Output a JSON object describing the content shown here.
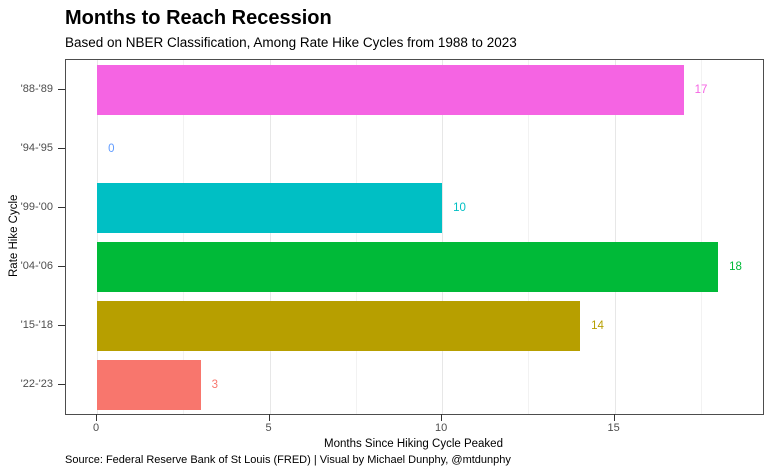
{
  "header": {
    "title": "Months to Reach Recession",
    "subtitle": "Based on NBER Classification, Among Rate Hike Cycles from 1988 to 2023"
  },
  "footer": {
    "caption": "Source: Federal Reserve Bank of St Louis (FRED) | Visual by Michael Dunphy, @mtdunphy"
  },
  "chart_data": {
    "type": "bar",
    "orientation": "horizontal",
    "title": "Months to Reach Recession",
    "subtitle": "Based on NBER Classification, Among Rate Hike Cycles from 1988 to 2023",
    "categories": [
      "'88-'89",
      "'94-'95",
      "'99-'00",
      "'04-'06",
      "'15-'18",
      "'22-'23"
    ],
    "values": [
      17,
      0,
      10,
      18,
      14,
      3
    ],
    "bar_colors": [
      "#F564E3",
      "#619CFF",
      "#00BFC4",
      "#00BA38",
      "#B79F00",
      "#F8766D"
    ],
    "xlabel": "Months Since Hiking Cycle Peaked",
    "ylabel": "Rate Hike Cycle",
    "x_ticks": [
      0,
      5,
      10,
      15
    ],
    "x_minor_ticks": [
      2.5,
      7.5,
      12.5,
      17.5
    ],
    "xlim": [
      -0.9,
      19.3
    ],
    "value_labels_shown": true,
    "grid": "vertical-major-and-minor",
    "legend": "none",
    "style_colors": {
      "panel_border": "#4d4d4d",
      "grid_major": "#e7e7e7",
      "grid_minor": "#f2f2f2",
      "tick_mark": "#333333",
      "axis_text": "#4d4d4d"
    }
  }
}
